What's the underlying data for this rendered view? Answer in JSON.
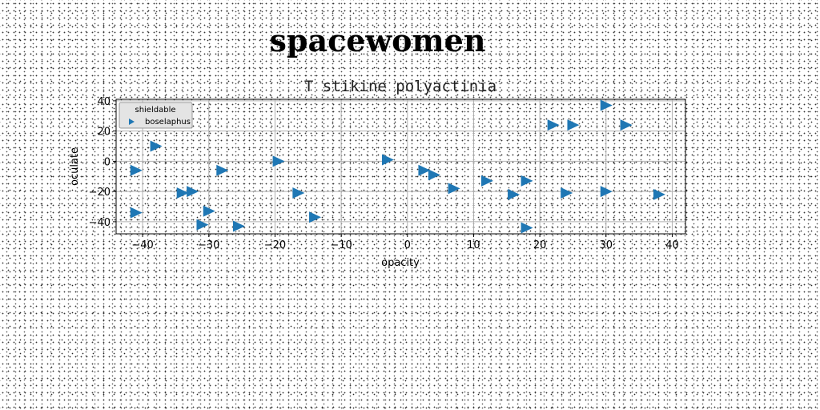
{
  "page": {
    "title": "spacewomen"
  },
  "chart_data": {
    "type": "scatter",
    "title": "T stikine polyactinia",
    "xlabel": "opacity",
    "ylabel": "oculate",
    "xlim": [
      -44,
      42
    ],
    "ylim": [
      -48,
      41
    ],
    "xticks": [
      -40,
      -30,
      -20,
      -10,
      0,
      10,
      20,
      30,
      40
    ],
    "yticks": [
      -40,
      -20,
      0,
      20,
      40
    ],
    "xtick_labels": [
      "−40",
      "−30",
      "−20",
      "−10",
      "0",
      "10",
      "20",
      "30",
      "40"
    ],
    "ytick_labels": [
      "−40",
      "−20",
      "0",
      "20",
      "40"
    ],
    "grid": true,
    "legend": {
      "title": "shieldable",
      "position": "top-left"
    },
    "marker": "triangle-right",
    "color": "#1f77b4",
    "series": [
      {
        "name": "boselaphus",
        "points": [
          [
            -41.0,
            -6
          ],
          [
            -38.0,
            10
          ],
          [
            -41.0,
            -34
          ],
          [
            -34.0,
            -21
          ],
          [
            -32.5,
            -20
          ],
          [
            -30.0,
            -33
          ],
          [
            -31.0,
            -42
          ],
          [
            -28.0,
            -6
          ],
          [
            -25.5,
            -43
          ],
          [
            -19.5,
            0
          ],
          [
            -16.5,
            -21
          ],
          [
            -14.0,
            -37
          ],
          [
            -3.0,
            1
          ],
          [
            2.5,
            -6
          ],
          [
            4.0,
            -9
          ],
          [
            7.0,
            -18
          ],
          [
            12.0,
            -13
          ],
          [
            16.0,
            -22
          ],
          [
            18.0,
            -13
          ],
          [
            18.0,
            -44
          ],
          [
            22.0,
            24
          ],
          [
            25.0,
            24
          ],
          [
            24.0,
            -21
          ],
          [
            30.0,
            37
          ],
          [
            30.0,
            -20
          ],
          [
            33.0,
            24
          ],
          [
            38.0,
            -22
          ]
        ]
      }
    ]
  }
}
